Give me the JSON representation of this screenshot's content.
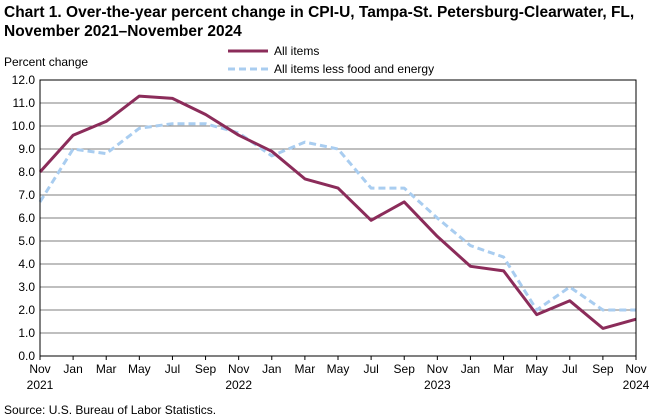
{
  "chart_data": {
    "type": "line",
    "title": "Chart 1. Over-the-year percent change in CPI-U, Tampa-St. Petersburg-Clearwater, FL, November 2021–November 2024",
    "ylabel": "Percent change",
    "xlabel": "",
    "ylim": [
      0,
      12
    ],
    "y_ticks": [
      0,
      1,
      2,
      3,
      4,
      5,
      6,
      7,
      8,
      9,
      10,
      11,
      12
    ],
    "y_tick_labels": [
      "0.0",
      "1.0",
      "2.0",
      "3.0",
      "4.0",
      "5.0",
      "6.0",
      "7.0",
      "8.0",
      "9.0",
      "10.0",
      "11.0",
      "12.0"
    ],
    "x_count": 19,
    "x_tick_labels": [
      {
        "index": 0,
        "month": "Nov",
        "year": "2021"
      },
      {
        "index": 1,
        "month": "Jan",
        "year": ""
      },
      {
        "index": 2,
        "month": "Mar",
        "year": ""
      },
      {
        "index": 3,
        "month": "May",
        "year": ""
      },
      {
        "index": 4,
        "month": "Jul",
        "year": ""
      },
      {
        "index": 5,
        "month": "Sep",
        "year": ""
      },
      {
        "index": 6,
        "month": "Nov",
        "year": "2022"
      },
      {
        "index": 7,
        "month": "Jan",
        "year": ""
      },
      {
        "index": 8,
        "month": "Mar",
        "year": ""
      },
      {
        "index": 9,
        "month": "May",
        "year": ""
      },
      {
        "index": 10,
        "month": "Jul",
        "year": ""
      },
      {
        "index": 11,
        "month": "Sep",
        "year": ""
      },
      {
        "index": 12,
        "month": "Nov",
        "year": "2023"
      },
      {
        "index": 13,
        "month": "Jan",
        "year": ""
      },
      {
        "index": 14,
        "month": "Mar",
        "year": ""
      },
      {
        "index": 15,
        "month": "May",
        "year": ""
      },
      {
        "index": 16,
        "month": "Jul",
        "year": ""
      },
      {
        "index": 17,
        "month": "Sep",
        "year": ""
      },
      {
        "index": 18,
        "month": "Nov",
        "year": "2024"
      }
    ],
    "series": [
      {
        "name": "All items",
        "color": "#8b2c5a",
        "style": "solid",
        "values": [
          8.0,
          9.6,
          10.2,
          11.3,
          11.2,
          10.5,
          9.6,
          8.9,
          7.7,
          7.3,
          5.9,
          6.7,
          5.2,
          3.9,
          3.7,
          1.8,
          2.4,
          1.2,
          1.6
        ]
      },
      {
        "name": "All items less food and energy",
        "color": "#a9cdf0",
        "style": "dashed",
        "values": [
          6.7,
          9.0,
          8.8,
          9.9,
          10.1,
          10.1,
          9.7,
          8.7,
          9.3,
          9.0,
          7.3,
          7.3,
          6.0,
          4.8,
          4.3,
          2.0,
          3.0,
          2.0,
          2.0
        ]
      }
    ],
    "grid": true,
    "legend_position": "top-center"
  },
  "source": "Source: U.S. Bureau of Labor Statistics."
}
